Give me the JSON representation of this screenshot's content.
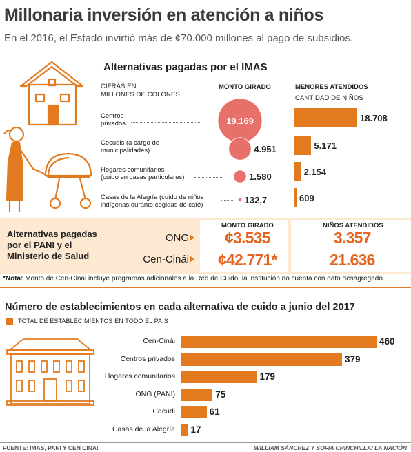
{
  "header": {
    "title": "Millonaria inversión en atención a niños",
    "subtitle": "En el 2016, el Estado invirtió más de ¢70.000 millones al pago de subsidios."
  },
  "imas": {
    "heading": "Alternativas pagadas por el IMAS",
    "units_label_1": "CIFRAS EN",
    "units_label_2": "MILLONES DE COLONES",
    "col_monto": "MONTO GIRADO",
    "col_menores": "MENORES ATENDIDOS",
    "col_cantidad": "CANTIDAD DE NIÑOS"
  },
  "pani": {
    "heading_1": "Alternativas pagadas",
    "heading_2": "por el PANI y el",
    "heading_3": "Ministerio de Salud",
    "col_monto": "MONTO GIRADO",
    "col_ninos": "NIÑOS ATENDIDOS",
    "rows": [
      {
        "name": "ONG",
        "monto": "¢3.535",
        "ninos": "3.357"
      },
      {
        "name": "Cen-Cinái",
        "monto": "¢42.771*",
        "ninos": "21.636"
      }
    ]
  },
  "note": {
    "label": "*Nota:",
    "text": " Monto de Cen-Cinái incluye programas adicionales a la Red de Cuido, la institución no cuenta con dato desagregado."
  },
  "establecimientos": {
    "heading": "Número de establecimientos en cada alternativa de cuido a junio del 2017",
    "legend": "TOTAL DE ESTABLECIMIENTOS EN TODO EL PAÍS"
  },
  "footer": {
    "source": "FUENTE: IMAS, PANI Y CEN CINAI",
    "credit": "WILLIAM SÁNCHEZ Y SOFIA CHINCHILLA/ LA NACIÓN"
  },
  "colors": {
    "accent": "#e27b1f",
    "circle": "#e8706a",
    "band": "#fde9d2",
    "big_numbers": "#e5641f"
  },
  "chart_data": [
    {
      "type": "bubble",
      "name": "monto_imas",
      "categories": [
        [
          "Centros",
          "privados"
        ],
        [
          "Cecudis (a cargo de",
          "municipalidades)"
        ],
        [
          "Hogares comunitarios",
          "(cuido en casas particulares)"
        ],
        [
          "Casas de la Alegría (cuido de niños",
          "indígenas durante cogidas de café)"
        ]
      ],
      "values": [
        19169,
        4951,
        1580,
        132.7
      ],
      "labels": [
        "19.169",
        "4.951",
        "1.580",
        "132,7"
      ]
    },
    {
      "type": "bar",
      "name": "menores_imas",
      "categories": [
        "Centros privados",
        "Cecudis",
        "Hogares comunitarios",
        "Casas de la Alegría"
      ],
      "values": [
        18708,
        5171,
        2154,
        609
      ],
      "labels": [
        "18.708",
        "5.171",
        "2.154",
        "609"
      ]
    },
    {
      "type": "bar",
      "name": "establecimientos",
      "orientation": "horizontal",
      "categories": [
        "Cen-Cinái",
        "Centros privados",
        "Hogares comunitarios",
        "ONG (PANI)",
        "Cecudi",
        "Casas de la Alegría"
      ],
      "values": [
        460,
        379,
        179,
        75,
        61,
        17
      ]
    }
  ]
}
